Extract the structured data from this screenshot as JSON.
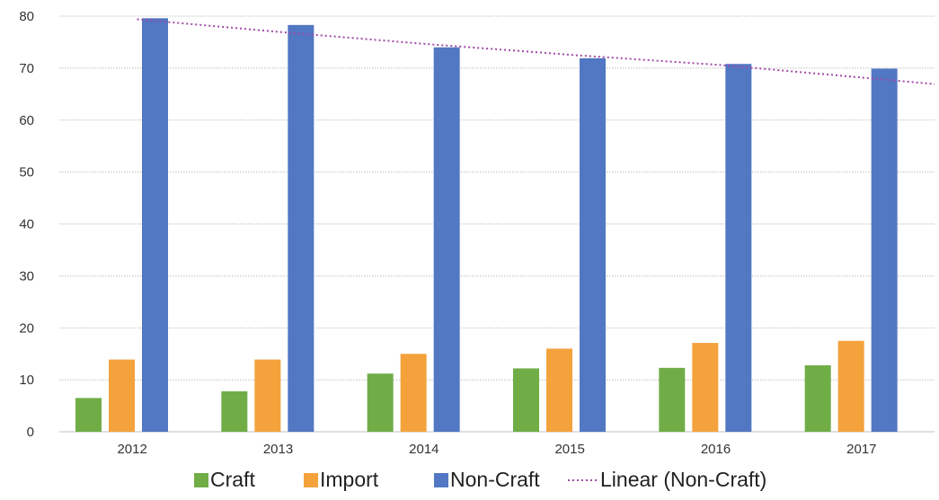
{
  "chart_data": {
    "type": "bar",
    "categories": [
      "2012",
      "2013",
      "2014",
      "2015",
      "2016",
      "2017"
    ],
    "series": [
      {
        "name": "Craft",
        "color": "#70ad47",
        "values": [
          6.5,
          7.8,
          11.2,
          12.2,
          12.3,
          12.8
        ]
      },
      {
        "name": "Import",
        "color": "#f4a23c",
        "values": [
          13.9,
          13.9,
          15.0,
          16.0,
          17.1,
          17.5
        ]
      },
      {
        "name": "Non-Craft",
        "color": "#5277c3",
        "values": [
          79.6,
          78.3,
          74.0,
          71.9,
          70.8,
          69.9
        ]
      }
    ],
    "trendline": {
      "name": "Linear (Non-Craft)",
      "series": "Non-Craft",
      "style": "dotted",
      "color": "#a14aa8",
      "values": [
        79.4,
        76.9,
        74.6,
        72.5,
        70.6,
        68.1
      ]
    },
    "yticks": [
      0,
      10,
      20,
      30,
      40,
      50,
      60,
      70,
      80
    ],
    "ylim": [
      0,
      80
    ],
    "grid": true,
    "legend_position": "bottom"
  }
}
